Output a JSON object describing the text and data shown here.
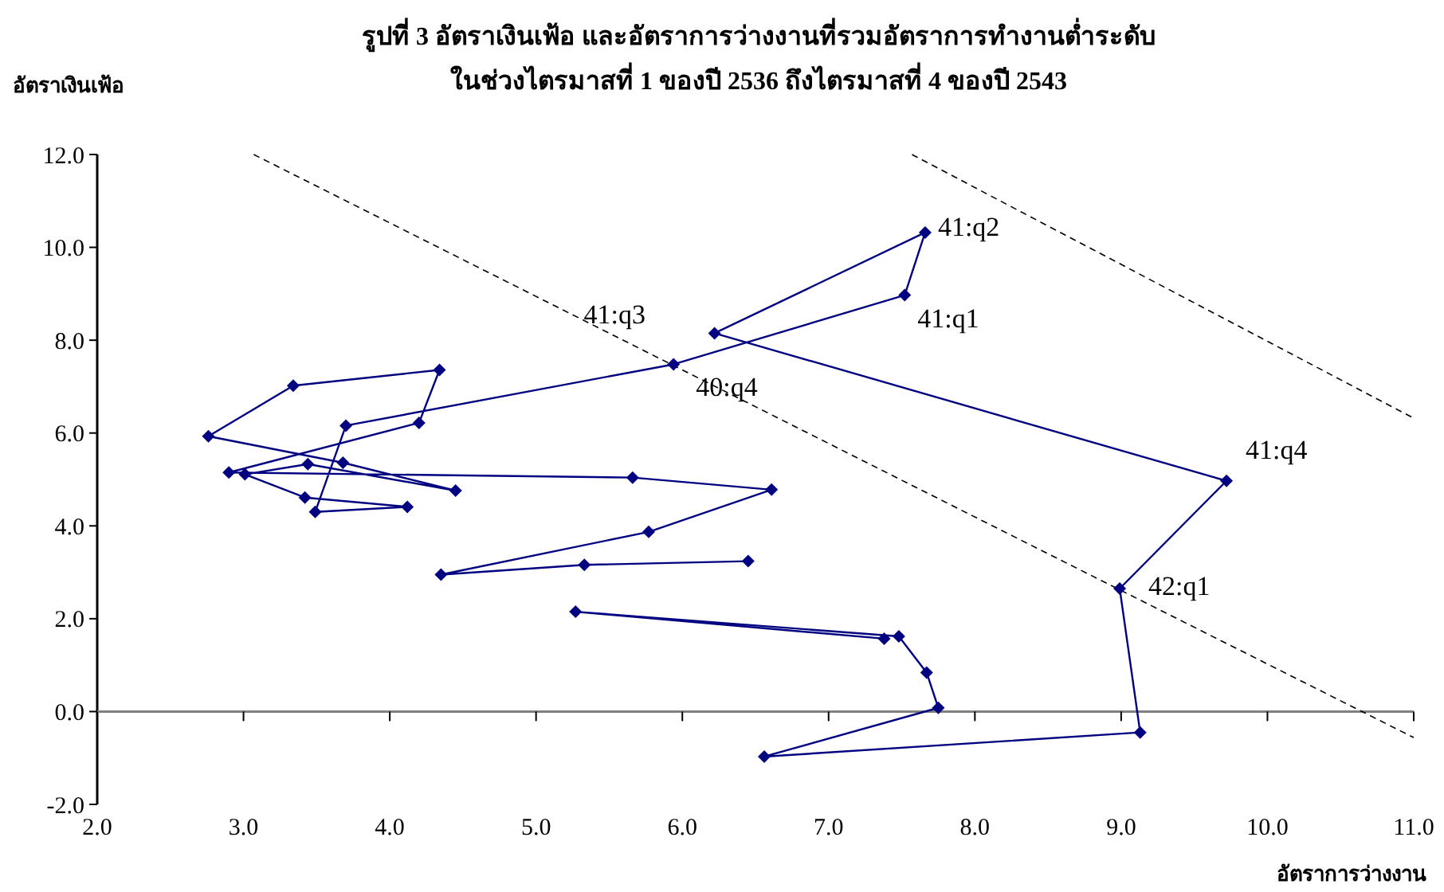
{
  "chart_data": {
    "type": "line",
    "title": "รูปที่ 3 อัตราเงินเฟ้อ และอัตราการว่างงานที่รวมอัตราการทำงานต่ำระดับ",
    "subtitle": "ในช่วงไตรมาสที่ 1 ของปี 2536 ถึงไตรมาสที่ 4 ของปี 2543",
    "xlabel": "อัตราการว่างงาน",
    "ylabel": "อัตราเงินเฟ้อ",
    "xlim": [
      2,
      11
    ],
    "ylim": [
      -2,
      12
    ],
    "xticks": [
      {
        "value": 2,
        "label": "2.0"
      },
      {
        "value": 3,
        "label": "3.0"
      },
      {
        "value": 4,
        "label": "4.0"
      },
      {
        "value": 5,
        "label": "5.0"
      },
      {
        "value": 6,
        "label": "6.0"
      },
      {
        "value": 7,
        "label": "7.0"
      },
      {
        "value": 8,
        "label": "8.0"
      },
      {
        "value": 9,
        "label": "9.0"
      },
      {
        "value": 10,
        "label": "10.0"
      },
      {
        "value": 11,
        "label": "11.0"
      }
    ],
    "yticks": [
      {
        "value": -2,
        "label": "-2.0"
      },
      {
        "value": 0,
        "label": "0.0"
      },
      {
        "value": 2,
        "label": "2.0"
      },
      {
        "value": 4,
        "label": "4.0"
      },
      {
        "value": 6,
        "label": "6.0"
      },
      {
        "value": 8,
        "label": "8.0"
      },
      {
        "value": 10,
        "label": "10.0"
      },
      {
        "value": 12,
        "label": "12.0"
      }
    ],
    "marker": "diamond",
    "line_style": "solid",
    "series": [
      {
        "color": "#000080",
        "x": [
          6.45,
          5.33,
          4.35,
          5.77,
          6.61,
          5.66,
          2.9,
          4.2,
          4.34,
          3.34,
          2.76,
          3.68,
          4.45,
          3.44,
          3.01,
          3.42,
          4.12,
          3.49,
          3.7,
          5.94,
          7.52,
          7.66,
          6.22,
          9.72,
          8.99,
          9.13,
          6.56,
          7.75,
          7.67,
          7.48,
          5.27,
          7.38
        ],
        "values": [
          3.24,
          3.16,
          2.95,
          3.87,
          4.78,
          5.04,
          5.15,
          6.22,
          7.36,
          7.02,
          5.93,
          5.36,
          4.76,
          5.33,
          5.11,
          4.61,
          4.41,
          4.3,
          6.16,
          7.48,
          8.97,
          10.32,
          8.15,
          4.97,
          2.65,
          -0.45,
          -0.97,
          0.08,
          0.84,
          1.62,
          2.15,
          1.57
        ]
      },
      {
        "color": "#000000",
        "marker": "none",
        "line_style": "dashed",
        "x": [
          3.07,
          11
        ],
        "values": [
          12,
          -0.56
        ]
      },
      {
        "color": "#000000",
        "marker": "none",
        "line_style": "dashed",
        "x": [
          7.57,
          11
        ],
        "values": [
          12,
          6.32
        ]
      }
    ],
    "annotations": [
      {
        "text": "40:q4",
        "x": 5.94,
        "y": 7.48
      },
      {
        "text": "41:q1",
        "x": 7.52,
        "y": 8.97
      },
      {
        "text": "41:q2",
        "x": 7.66,
        "y": 10.32
      },
      {
        "text": "41:q3",
        "x": 6.22,
        "y": 8.15
      },
      {
        "text": "41:q4",
        "x": 9.72,
        "y": 4.97
      },
      {
        "text": "42:q1",
        "x": 8.99,
        "y": 2.65
      }
    ]
  }
}
